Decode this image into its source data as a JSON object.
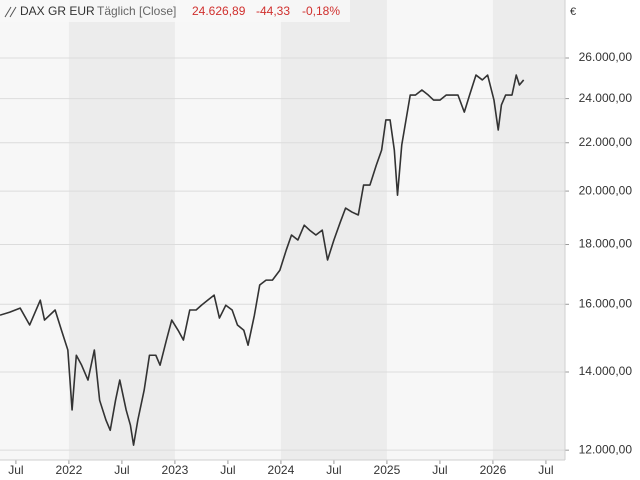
{
  "chart_data": {
    "type": "line",
    "title": "DAX GR EUR",
    "subtitle": "Täglich [Close]",
    "last_value": "24.626,89",
    "change": "-44,33",
    "change_percent": "-0,18%",
    "y_unit": "€",
    "log_scale": true,
    "grid": true,
    "year_bands": true,
    "xlim": [
      2021.35,
      2026.68
    ],
    "ylim": [
      11770,
      29150
    ],
    "xticks": [
      {
        "value": 2021.5,
        "label": "Jul"
      },
      2022,
      {
        "value": 2022.5,
        "label": "Jul"
      },
      2023,
      {
        "value": 2023.5,
        "label": "Jul"
      },
      2024,
      {
        "value": 2024.5,
        "label": "Jul"
      },
      2025,
      {
        "value": 2025.5,
        "label": "Jul"
      },
      2026,
      {
        "value": 2026.5,
        "label": "Jul"
      }
    ],
    "yticks": [
      {
        "value": 12000,
        "label": "12.000,00"
      },
      {
        "value": 14000,
        "label": "14.000,00"
      },
      {
        "value": 16000,
        "label": "16.000,00"
      },
      {
        "value": 18000,
        "label": "18.000,00"
      },
      {
        "value": 20000,
        "label": "20.000,00"
      },
      {
        "value": 22000,
        "label": "22.000,00"
      },
      {
        "value": 24000,
        "label": "24.000,00"
      },
      {
        "value": 26000,
        "label": "26.000,00"
      }
    ],
    "series": [
      {
        "name": "DAX GR EUR",
        "color": "#333333",
        "x": [
          2021.35,
          2021.44,
          2021.54,
          2021.63,
          2021.73,
          2021.77,
          2021.87,
          2021.93,
          2021.99,
          2022.03,
          2022.07,
          2022.12,
          2022.18,
          2022.24,
          2022.29,
          2022.35,
          2022.39,
          2022.44,
          2022.48,
          2022.54,
          2022.58,
          2022.61,
          2022.65,
          2022.71,
          2022.76,
          2022.82,
          2022.86,
          2022.92,
          2022.97,
          2023.03,
          2023.08,
          2023.14,
          2023.2,
          2023.25,
          2023.31,
          2023.37,
          2023.42,
          2023.48,
          2023.54,
          2023.59,
          2023.65,
          2023.69,
          2023.75,
          2023.8,
          2023.86,
          2023.92,
          2023.99,
          2024.05,
          2024.1,
          2024.16,
          2024.22,
          2024.27,
          2024.33,
          2024.39,
          2024.44,
          2024.5,
          2024.56,
          2024.61,
          2024.67,
          2024.73,
          2024.78,
          2024.84,
          2024.9,
          2024.95,
          2024.99,
          2025.03,
          2025.07,
          2025.1,
          2025.14,
          2025.18,
          2025.22,
          2025.27,
          2025.33,
          2025.39,
          2025.44,
          2025.5,
          2025.56,
          2025.61,
          2025.67,
          2025.73,
          2025.78,
          2025.84,
          2025.9,
          2025.95,
          2026.01,
          2026.05,
          2026.08,
          2026.12,
          2026.18,
          2026.22,
          2026.25,
          2026.29
        ],
        "values": [
          15660,
          15750,
          15880,
          15360,
          16130,
          15510,
          15820,
          15200,
          14620,
          12990,
          14470,
          14190,
          13780,
          14620,
          13240,
          12730,
          12480,
          13240,
          13780,
          12990,
          12610,
          12120,
          12730,
          13510,
          14470,
          14470,
          14190,
          14910,
          15510,
          15200,
          14910,
          15820,
          15820,
          15970,
          16130,
          16290,
          15570,
          15970,
          15820,
          15360,
          15200,
          14760,
          15660,
          16620,
          16780,
          16780,
          17110,
          17800,
          18340,
          18160,
          18700,
          18520,
          18340,
          18520,
          17460,
          18160,
          18810,
          19340,
          19190,
          19080,
          20240,
          20240,
          21050,
          21680,
          23010,
          23010,
          21680,
          19840,
          21900,
          23010,
          24170,
          24170,
          24410,
          24170,
          23930,
          23930,
          24170,
          24170,
          24170,
          23370,
          24170,
          25140,
          24900,
          25140,
          23930,
          22560,
          23700,
          24170,
          24170,
          25140,
          24650,
          24900
        ]
      }
    ]
  }
}
